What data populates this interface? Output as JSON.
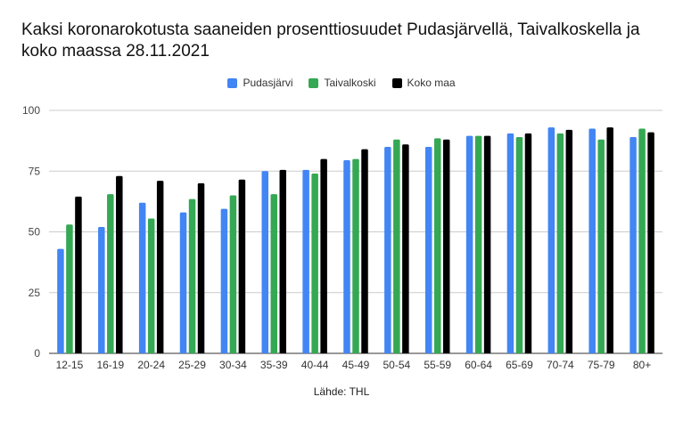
{
  "chart_data": {
    "type": "bar",
    "title": "Kaksi koronarokotusta saaneiden prosenttiosuudet Pudasjärvellä, Taivalkoskella ja koko maassa 28.11.2021",
    "xlabel": "Lähde: THL",
    "ylabel": "",
    "ylim": [
      0,
      100
    ],
    "yticks": [
      0,
      25,
      50,
      75,
      100
    ],
    "grid": true,
    "legend_position": "top-center",
    "categories": [
      "12-15",
      "16-19",
      "20-24",
      "25-29",
      "30-34",
      "35-39",
      "40-44",
      "45-49",
      "50-54",
      "55-59",
      "60-64",
      "65-69",
      "70-74",
      "75-79",
      "80+"
    ],
    "series": [
      {
        "name": "Pudasjärvi",
        "color": "#4285f4",
        "values": [
          43,
          52,
          62,
          58,
          59.5,
          75,
          75.5,
          79.5,
          85,
          85,
          89.5,
          90.5,
          93,
          92.5,
          89
        ]
      },
      {
        "name": "Taivalkoski",
        "color": "#34a853",
        "values": [
          53,
          65.5,
          55.5,
          63.5,
          65,
          65.5,
          74,
          80,
          88,
          88.5,
          89.5,
          89,
          90.5,
          88,
          92.5
        ]
      },
      {
        "name": "Koko maa",
        "color": "#000000",
        "values": [
          64.5,
          73,
          71,
          70,
          71.5,
          75.5,
          80,
          84,
          86,
          88,
          89.5,
          90.5,
          92,
          93,
          91
        ]
      }
    ]
  }
}
